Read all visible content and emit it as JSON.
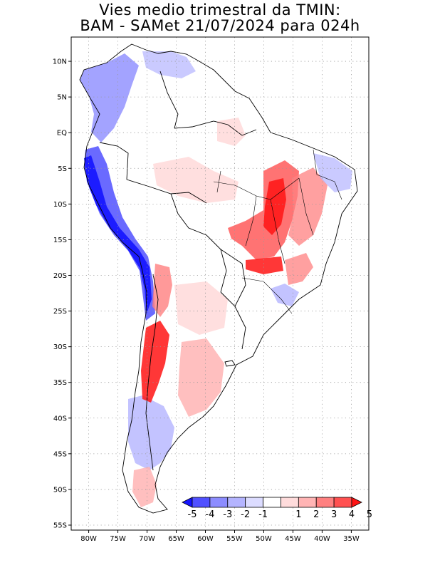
{
  "title": {
    "line1": "Vies medio trimestral da TMIN:",
    "line2": "BAM - SAMet 21/07/2024  para 024h"
  },
  "map": {
    "lat_labels": [
      "10N",
      "5N",
      "EQ",
      "5S",
      "10S",
      "15S",
      "20S",
      "25S",
      "30S",
      "35S",
      "40S",
      "45S",
      "50S",
      "55S"
    ],
    "lon_labels": [
      "80W",
      "75W",
      "70W",
      "65W",
      "60W",
      "55W",
      "50W",
      "45W",
      "40W",
      "35W"
    ],
    "lat_values": [
      10,
      5,
      0,
      -5,
      -10,
      -15,
      -20,
      -25,
      -30,
      -35,
      -40,
      -45,
      -50,
      -55
    ],
    "lon_values": [
      -80,
      -75,
      -70,
      -65,
      -60,
      -55,
      -50,
      -45,
      -40,
      -35
    ],
    "lon_range": [
      -83,
      -32
    ],
    "lat_range": [
      -55.7,
      13.4
    ],
    "grid": "dotted",
    "ocean_color": "#ffffff",
    "land_outline_color": "#000000"
  },
  "colorbar": {
    "labels": [
      "-5",
      "-4",
      "-3",
      "-2",
      "-1",
      "1",
      "2",
      "3",
      "4",
      "5"
    ],
    "colors": [
      "#1414ff",
      "#5050ff",
      "#8c8cff",
      "#b4b4ff",
      "#dcdcff",
      "#ffffff",
      "#ffdcdc",
      "#ffb4b4",
      "#ff8080",
      "#ff5050",
      "#ff1414"
    ],
    "placement": "bottom-right"
  }
}
